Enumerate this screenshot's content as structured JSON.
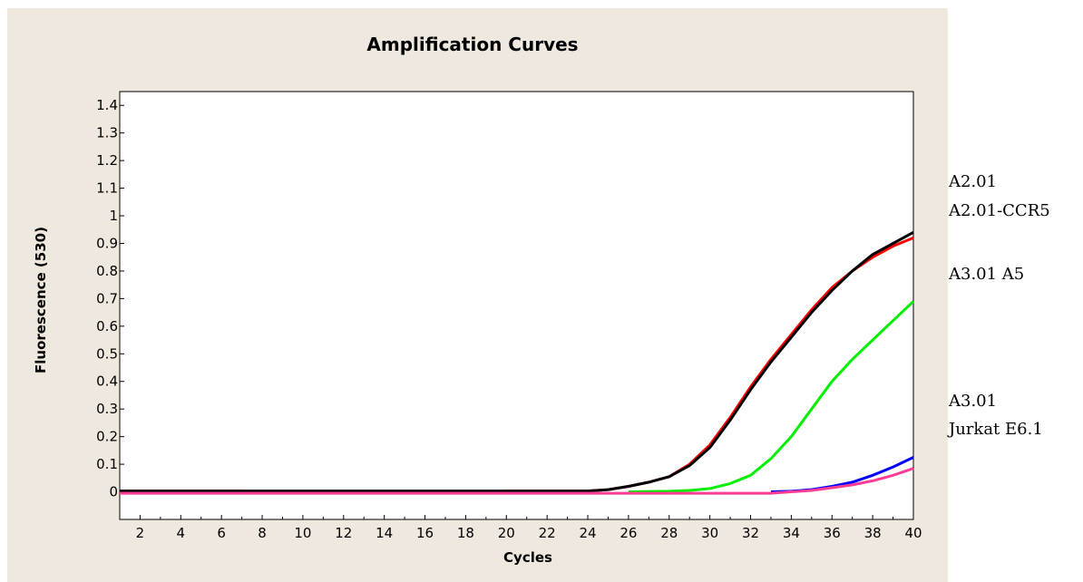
{
  "chart_data": {
    "type": "line",
    "title": "Amplification Curves",
    "xlabel": "Cycles",
    "ylabel": "Fluorescence (530)",
    "xlim": [
      1,
      40
    ],
    "ylim": [
      -0.1,
      1.45
    ],
    "xticks": [
      2,
      4,
      6,
      8,
      10,
      12,
      14,
      16,
      18,
      20,
      22,
      24,
      26,
      28,
      30,
      32,
      34,
      36,
      38,
      40
    ],
    "yticks": [
      0,
      0.1,
      0.2,
      0.3,
      0.4,
      0.5,
      0.6,
      0.7,
      0.8,
      0.9,
      1,
      1.1,
      1.2,
      1.3,
      1.4
    ],
    "ytick_labels": [
      "0",
      "0.1",
      "0.2",
      "0.3",
      "0.4",
      "0.5",
      "0.6",
      "0.7",
      "0.8",
      "0.9",
      "1",
      "1.1",
      "1.2",
      "1.3",
      "1.4"
    ],
    "grid": false,
    "series": [
      {
        "color": "#ff0000",
        "x": [
          1,
          2,
          4,
          6,
          7,
          8,
          19,
          20,
          22,
          24,
          25,
          26,
          27,
          28,
          29,
          30,
          31,
          32,
          33,
          34,
          35,
          36,
          37,
          38,
          39,
          40
        ],
        "y": [
          0.003,
          0.003,
          0.003,
          0.003,
          0.003,
          -0.003,
          -0.003,
          0.003,
          0.003,
          0.003,
          0.008,
          0.02,
          0.035,
          0.055,
          0.1,
          0.17,
          0.27,
          0.38,
          0.48,
          0.57,
          0.66,
          0.74,
          0.8,
          0.85,
          0.89,
          0.92
        ]
      },
      {
        "color": "#000000",
        "x": [
          1,
          3,
          21,
          24,
          25,
          26,
          27,
          28,
          29,
          30,
          31,
          32,
          33,
          34,
          35,
          36,
          37,
          38,
          39,
          40
        ],
        "y": [
          0.003,
          0.003,
          0.003,
          0.003,
          0.008,
          0.02,
          0.035,
          0.055,
          0.095,
          0.16,
          0.26,
          0.37,
          0.47,
          0.56,
          0.65,
          0.73,
          0.8,
          0.86,
          0.9,
          0.94
        ]
      },
      {
        "color": "#00ee00",
        "x": [
          26,
          28,
          29,
          30,
          31,
          32,
          33,
          34,
          35,
          36,
          37,
          38,
          39,
          40
        ],
        "y": [
          0,
          0.002,
          0.005,
          0.012,
          0.03,
          0.06,
          0.12,
          0.2,
          0.3,
          0.4,
          0.48,
          0.55,
          0.62,
          0.69
        ]
      },
      {
        "color": "#0000ff",
        "x": [
          33,
          34,
          35,
          36,
          37,
          38,
          39,
          40
        ],
        "y": [
          0,
          0.002,
          0.008,
          0.02,
          0.035,
          0.06,
          0.09,
          0.125
        ]
      },
      {
        "color": "#ff3d96",
        "x": [
          1,
          20,
          30,
          33,
          34,
          35,
          36,
          37,
          38,
          39,
          40
        ],
        "y": [
          -0.005,
          -0.005,
          -0.005,
          -0.005,
          0.0,
          0.005,
          0.015,
          0.025,
          0.04,
          0.06,
          0.085
        ]
      }
    ]
  },
  "side_labels": [
    "A2.01",
    "A2.01-CCR5",
    "A3.01 A5",
    "A3.01",
    "Jurkat E6.1"
  ]
}
